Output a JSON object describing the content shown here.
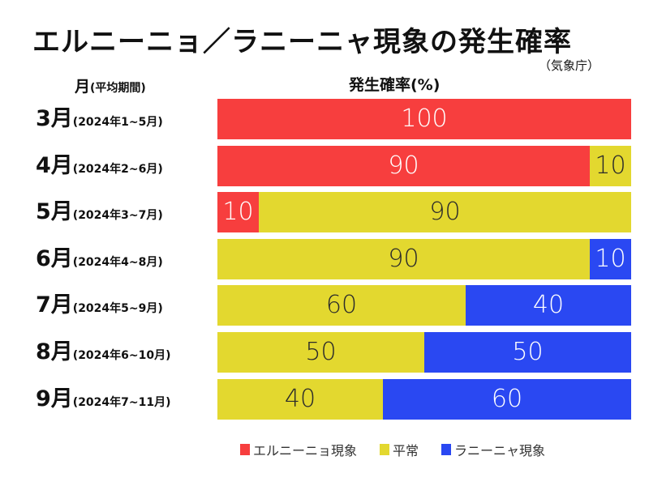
{
  "title": "エルニーニョ／ラニーニャ現象の発生確率",
  "source": "（気象庁）",
  "y_header": {
    "main": "月",
    "sub": "(平均期間)"
  },
  "chart_data": {
    "type": "bar",
    "orientation": "horizontal",
    "stacked": true,
    "xlabel": "発生確率(%)",
    "xlim": [
      0,
      100
    ],
    "categories": [
      {
        "month": "3月",
        "period": "(2024年1~5月)"
      },
      {
        "month": "4月",
        "period": "(2024年2~6月)"
      },
      {
        "month": "5月",
        "period": "(2024年3~7月)"
      },
      {
        "month": "6月",
        "period": "(2024年4~8月)"
      },
      {
        "month": "7月",
        "period": "(2024年5~9月)"
      },
      {
        "month": "8月",
        "period": "(2024年6~10月)"
      },
      {
        "month": "9月",
        "period": "(2024年7~11月)"
      }
    ],
    "series": [
      {
        "name": "エルニーニョ現象",
        "color": "#f73e3e",
        "label_color": "#ffffff",
        "values": [
          100,
          90,
          10,
          0,
          0,
          0,
          0
        ]
      },
      {
        "name": "平常",
        "color": "#e3d82f",
        "label_color": "#2b2b2b",
        "values": [
          0,
          10,
          90,
          90,
          60,
          50,
          40
        ]
      },
      {
        "name": "ラニーニャ現象",
        "color": "#2a48f2",
        "label_color": "#ffffff",
        "values": [
          0,
          0,
          0,
          10,
          40,
          50,
          60
        ]
      }
    ],
    "legend_position": "bottom",
    "grid": false
  }
}
